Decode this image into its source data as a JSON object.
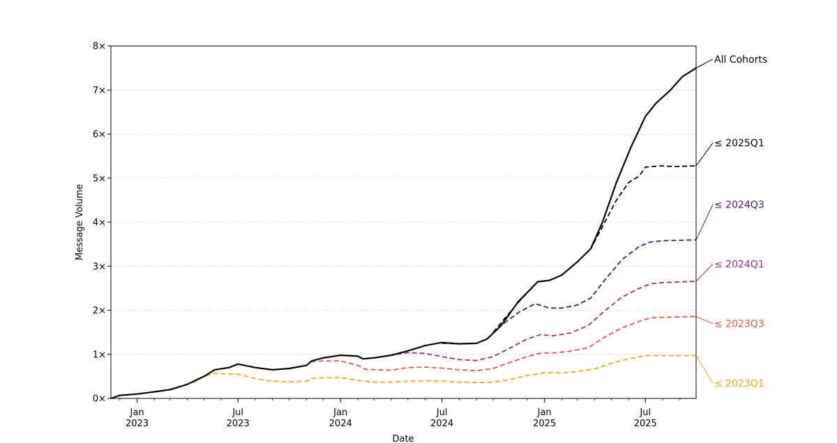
{
  "chart_data": {
    "type": "line",
    "title": "",
    "xlabel": "Date",
    "ylabel": "Message Volume",
    "xlim": [
      "2022-11-15",
      "2025-09-30"
    ],
    "ylim": [
      0,
      8
    ],
    "grid": "horizontal-dotted",
    "legend": "right-edge-labels",
    "yticks": [
      {
        "v": 0,
        "label": "0×"
      },
      {
        "v": 1,
        "label": "1×"
      },
      {
        "v": 2,
        "label": "2×"
      },
      {
        "v": 3,
        "label": "3×"
      },
      {
        "v": 4,
        "label": "4×"
      },
      {
        "v": 5,
        "label": "5×"
      },
      {
        "v": 6,
        "label": "6×"
      },
      {
        "v": 7,
        "label": "7×"
      },
      {
        "v": 8,
        "label": "8×"
      }
    ],
    "xticks": [
      {
        "date": "2023-01-01",
        "month": "Jan",
        "year": "2023"
      },
      {
        "date": "2023-07-01",
        "month": "Jul",
        "year": "2023"
      },
      {
        "date": "2024-01-01",
        "month": "Jan",
        "year": "2024"
      },
      {
        "date": "2024-07-01",
        "month": "Jul",
        "year": "2024"
      },
      {
        "date": "2025-01-01",
        "month": "Jan",
        "year": "2025"
      },
      {
        "date": "2025-07-01",
        "month": "Jul",
        "year": "2025"
      }
    ],
    "series": [
      {
        "name": "All Cohorts",
        "color": "#000000",
        "style": "solid",
        "label_y": 7.7,
        "points": [
          [
            "2022-11-15",
            0.0
          ],
          [
            "2022-12-01",
            0.07
          ],
          [
            "2023-01-01",
            0.1
          ],
          [
            "2023-02-01",
            0.15
          ],
          [
            "2023-03-01",
            0.2
          ],
          [
            "2023-04-01",
            0.32
          ],
          [
            "2023-05-01",
            0.5
          ],
          [
            "2023-05-20",
            0.65
          ],
          [
            "2023-06-15",
            0.7
          ],
          [
            "2023-07-01",
            0.78
          ],
          [
            "2023-08-01",
            0.7
          ],
          [
            "2023-09-01",
            0.65
          ],
          [
            "2023-10-01",
            0.68
          ],
          [
            "2023-11-01",
            0.75
          ],
          [
            "2023-11-10",
            0.85
          ],
          [
            "2023-12-01",
            0.92
          ],
          [
            "2024-01-01",
            0.98
          ],
          [
            "2024-02-01",
            0.96
          ],
          [
            "2024-02-10",
            0.9
          ],
          [
            "2024-03-01",
            0.92
          ],
          [
            "2024-04-01",
            0.98
          ],
          [
            "2024-05-01",
            1.08
          ],
          [
            "2024-06-01",
            1.2
          ],
          [
            "2024-07-01",
            1.27
          ],
          [
            "2024-08-01",
            1.24
          ],
          [
            "2024-09-01",
            1.25
          ],
          [
            "2024-09-20",
            1.35
          ],
          [
            "2024-10-15",
            1.65
          ],
          [
            "2024-11-15",
            2.2
          ],
          [
            "2024-12-20",
            2.65
          ],
          [
            "2025-01-10",
            2.68
          ],
          [
            "2025-02-01",
            2.8
          ],
          [
            "2025-03-01",
            3.1
          ],
          [
            "2025-03-25",
            3.4
          ],
          [
            "2025-04-15",
            4.0
          ],
          [
            "2025-05-10",
            4.9
          ],
          [
            "2025-06-05",
            5.7
          ],
          [
            "2025-07-01",
            6.4
          ],
          [
            "2025-07-20",
            6.7
          ],
          [
            "2025-08-15",
            7.0
          ],
          [
            "2025-09-05",
            7.3
          ],
          [
            "2025-09-30",
            7.5
          ]
        ]
      },
      {
        "name": "≤ 2025Q1",
        "color": "#000000",
        "style": "dashed",
        "label_y": 5.8,
        "points": [
          [
            "2024-10-01",
            1.5
          ],
          [
            "2024-11-15",
            2.18
          ],
          [
            "2024-12-20",
            2.65
          ],
          [
            "2025-01-10",
            2.68
          ],
          [
            "2025-02-01",
            2.8
          ],
          [
            "2025-03-01",
            3.1
          ],
          [
            "2025-03-25",
            3.4
          ],
          [
            "2025-04-15",
            3.9
          ],
          [
            "2025-05-10",
            4.5
          ],
          [
            "2025-06-01",
            4.9
          ],
          [
            "2025-06-20",
            5.05
          ],
          [
            "2025-07-01",
            5.25
          ],
          [
            "2025-08-01",
            5.28
          ],
          [
            "2025-08-20",
            5.26
          ],
          [
            "2025-09-30",
            5.28
          ]
        ]
      },
      {
        "name": "≤ 2024Q3",
        "color": "#4a1880",
        "style": "dashed",
        "label_y": 4.4,
        "points": [
          [
            "2024-07-01",
            1.25
          ],
          [
            "2024-08-01",
            1.24
          ],
          [
            "2024-09-01",
            1.25
          ],
          [
            "2024-09-20",
            1.35
          ],
          [
            "2024-10-15",
            1.65
          ],
          [
            "2024-11-15",
            1.95
          ],
          [
            "2024-12-15",
            2.15
          ],
          [
            "2025-01-10",
            2.05
          ],
          [
            "2025-02-01",
            2.05
          ],
          [
            "2025-03-01",
            2.12
          ],
          [
            "2025-03-25",
            2.28
          ],
          [
            "2025-04-20",
            2.7
          ],
          [
            "2025-05-20",
            3.15
          ],
          [
            "2025-06-20",
            3.45
          ],
          [
            "2025-07-10",
            3.55
          ],
          [
            "2025-08-01",
            3.58
          ],
          [
            "2025-09-30",
            3.6
          ]
        ]
      },
      {
        "name": "≤ 2024Q1",
        "color": "#9b2f82",
        "style": "dashed",
        "label_y": 3.05,
        "points": [
          [
            "2024-03-01",
            0.92
          ],
          [
            "2024-04-01",
            0.98
          ],
          [
            "2024-05-01",
            1.04
          ],
          [
            "2024-06-01",
            1.02
          ],
          [
            "2024-07-01",
            0.95
          ],
          [
            "2024-08-01",
            0.88
          ],
          [
            "2024-09-01",
            0.86
          ],
          [
            "2024-10-01",
            0.95
          ],
          [
            "2024-11-01",
            1.15
          ],
          [
            "2024-12-01",
            1.35
          ],
          [
            "2024-12-25",
            1.45
          ],
          [
            "2025-01-15",
            1.42
          ],
          [
            "2025-02-15",
            1.48
          ],
          [
            "2025-03-20",
            1.65
          ],
          [
            "2025-04-20",
            2.0
          ],
          [
            "2025-05-20",
            2.3
          ],
          [
            "2025-06-20",
            2.5
          ],
          [
            "2025-07-10",
            2.6
          ],
          [
            "2025-08-01",
            2.63
          ],
          [
            "2025-09-30",
            2.66
          ]
        ]
      },
      {
        "name": "≤ 2023Q3",
        "color": "#e05a4a",
        "style": "dashed",
        "label_y": 1.7,
        "points": [
          [
            "2023-10-01",
            0.68
          ],
          [
            "2023-11-01",
            0.75
          ],
          [
            "2023-11-10",
            0.83
          ],
          [
            "2023-12-01",
            0.85
          ],
          [
            "2024-01-01",
            0.85
          ],
          [
            "2024-02-01",
            0.75
          ],
          [
            "2024-02-15",
            0.66
          ],
          [
            "2024-04-01",
            0.64
          ],
          [
            "2024-05-01",
            0.7
          ],
          [
            "2024-06-01",
            0.71
          ],
          [
            "2024-07-01",
            0.69
          ],
          [
            "2024-08-01",
            0.65
          ],
          [
            "2024-09-01",
            0.63
          ],
          [
            "2024-10-01",
            0.68
          ],
          [
            "2024-11-01",
            0.82
          ],
          [
            "2024-12-01",
            0.95
          ],
          [
            "2024-12-25",
            1.03
          ],
          [
            "2025-01-15",
            1.03
          ],
          [
            "2025-02-15",
            1.07
          ],
          [
            "2025-03-20",
            1.15
          ],
          [
            "2025-04-20",
            1.4
          ],
          [
            "2025-05-20",
            1.6
          ],
          [
            "2025-06-20",
            1.75
          ],
          [
            "2025-07-10",
            1.83
          ],
          [
            "2025-08-01",
            1.84
          ],
          [
            "2025-09-30",
            1.86
          ]
        ]
      },
      {
        "name": "≤ 2023Q1",
        "color": "#f5a623",
        "style": "dashed",
        "label_y": 0.35,
        "points": [
          [
            "2023-04-10",
            0.35
          ],
          [
            "2023-05-01",
            0.5
          ],
          [
            "2023-05-20",
            0.57
          ],
          [
            "2023-06-15",
            0.55
          ],
          [
            "2023-07-01",
            0.55
          ],
          [
            "2023-08-01",
            0.45
          ],
          [
            "2023-09-01",
            0.39
          ],
          [
            "2023-10-01",
            0.38
          ],
          [
            "2023-11-01",
            0.39
          ],
          [
            "2023-11-10",
            0.45
          ],
          [
            "2023-12-01",
            0.47
          ],
          [
            "2024-01-01",
            0.47
          ],
          [
            "2024-02-01",
            0.41
          ],
          [
            "2024-03-01",
            0.37
          ],
          [
            "2024-04-01",
            0.37
          ],
          [
            "2024-05-01",
            0.39
          ],
          [
            "2024-06-01",
            0.4
          ],
          [
            "2024-07-01",
            0.39
          ],
          [
            "2024-08-01",
            0.37
          ],
          [
            "2024-09-01",
            0.36
          ],
          [
            "2024-10-01",
            0.37
          ],
          [
            "2024-11-01",
            0.43
          ],
          [
            "2024-12-01",
            0.52
          ],
          [
            "2025-01-01",
            0.58
          ],
          [
            "2025-02-01",
            0.58
          ],
          [
            "2025-03-01",
            0.61
          ],
          [
            "2025-04-01",
            0.67
          ],
          [
            "2025-05-01",
            0.8
          ],
          [
            "2025-06-01",
            0.9
          ],
          [
            "2025-07-01",
            0.97
          ],
          [
            "2025-08-01",
            0.97
          ],
          [
            "2025-09-30",
            0.97
          ]
        ]
      }
    ]
  }
}
